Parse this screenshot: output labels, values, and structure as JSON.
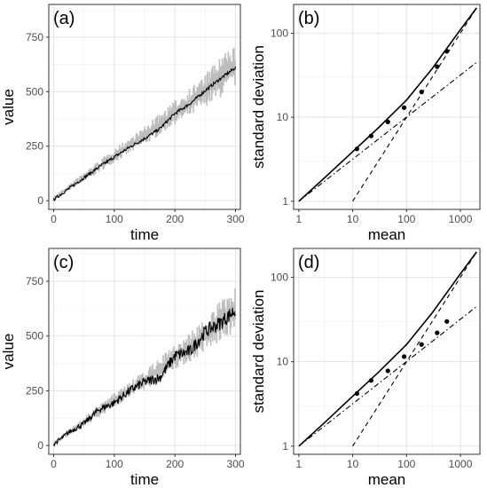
{
  "chart_data": [
    {
      "panel": "(a)",
      "type": "line",
      "xlabel": "time",
      "ylabel": "value",
      "xlim": [
        -8,
        308
      ],
      "ylim": [
        -40,
        900
      ],
      "xticks": [
        0,
        100,
        200,
        300
      ],
      "yticks": [
        0,
        250,
        500,
        750
      ],
      "grid": true,
      "series": [
        {
          "role": "band",
          "color": "#bdbdbd",
          "description_values": "min/max spread of simulated series",
          "x": [
            0,
            25,
            50,
            75,
            100,
            125,
            150,
            175,
            200,
            225,
            250,
            275,
            300
          ],
          "lower": [
            0,
            45,
            85,
            130,
            175,
            215,
            255,
            300,
            350,
            380,
            430,
            470,
            520
          ],
          "upper": [
            20,
            75,
            130,
            185,
            240,
            290,
            340,
            400,
            460,
            520,
            580,
            660,
            720
          ]
        },
        {
          "role": "line",
          "color": "#000000",
          "x": [
            0,
            25,
            50,
            75,
            100,
            125,
            150,
            175,
            200,
            225,
            250,
            275,
            300
          ],
          "y": [
            5,
            55,
            105,
            155,
            200,
            245,
            285,
            330,
            400,
            445,
            505,
            560,
            610
          ]
        }
      ]
    },
    {
      "panel": "(b)",
      "type": "scatter",
      "xlabel": "mean",
      "ylabel": "standard deviation",
      "xscale": "log",
      "yscale": "log",
      "xlim": [
        0.8,
        2300
      ],
      "ylim": [
        0.8,
        220
      ],
      "xticks": [
        1,
        10,
        100,
        1000
      ],
      "yticks": [
        1,
        10,
        100
      ],
      "grid": true,
      "points": {
        "x": [
          12,
          22,
          45,
          90,
          190,
          370,
          560
        ],
        "y": [
          4.2,
          6.0,
          8.8,
          13.0,
          20.0,
          40.0,
          61.0
        ]
      },
      "curves": [
        {
          "style": "solid",
          "x": [
            1,
            3,
            10,
            30,
            100,
            300,
            1000,
            2000
          ],
          "y": [
            1,
            1.9,
            3.9,
            7.5,
            16,
            38,
            110,
            200
          ]
        },
        {
          "style": "dashed",
          "x": [
            10,
            2000
          ],
          "y": [
            1,
            200
          ]
        },
        {
          "style": "dashdot",
          "x": [
            1,
            2000
          ],
          "y": [
            1,
            45
          ]
        }
      ]
    },
    {
      "panel": "(c)",
      "type": "line",
      "xlabel": "time",
      "ylabel": "value",
      "xlim": [
        -8,
        308
      ],
      "ylim": [
        -40,
        900
      ],
      "xticks": [
        0,
        100,
        200,
        300
      ],
      "yticks": [
        0,
        250,
        500,
        750
      ],
      "grid": true,
      "series": [
        {
          "role": "band",
          "color": "#bdbdbd",
          "x": [
            0,
            25,
            50,
            75,
            100,
            125,
            150,
            175,
            200,
            225,
            250,
            275,
            300
          ],
          "lower": [
            0,
            45,
            85,
            130,
            175,
            215,
            255,
            300,
            350,
            380,
            430,
            470,
            520
          ],
          "upper": [
            20,
            75,
            130,
            185,
            240,
            290,
            340,
            400,
            460,
            520,
            580,
            660,
            720
          ]
        },
        {
          "role": "line",
          "color": "#000000",
          "x": [
            0,
            25,
            50,
            75,
            100,
            125,
            150,
            175,
            200,
            225,
            250,
            275,
            300
          ],
          "y": [
            5,
            60,
            100,
            165,
            195,
            250,
            290,
            310,
            410,
            430,
            520,
            560,
            620
          ]
        }
      ]
    },
    {
      "panel": "(d)",
      "type": "scatter",
      "xlabel": "mean",
      "ylabel": "standard deviation",
      "xscale": "log",
      "yscale": "log",
      "xlim": [
        0.8,
        2300
      ],
      "ylim": [
        0.8,
        220
      ],
      "xticks": [
        1,
        10,
        100,
        1000
      ],
      "yticks": [
        1,
        10,
        100
      ],
      "grid": true,
      "points": {
        "x": [
          12,
          22,
          45,
          90,
          190,
          370,
          560
        ],
        "y": [
          4.2,
          6.0,
          7.8,
          11.5,
          16.0,
          22.0,
          30.0
        ]
      },
      "curves": [
        {
          "style": "solid",
          "x": [
            1,
            3,
            10,
            30,
            100,
            300,
            1000,
            2000
          ],
          "y": [
            1,
            1.9,
            3.9,
            7.5,
            16,
            38,
            110,
            200
          ]
        },
        {
          "style": "dashed",
          "x": [
            10,
            2000
          ],
          "y": [
            1,
            200
          ]
        },
        {
          "style": "dashdot",
          "x": [
            1,
            2000
          ],
          "y": [
            1,
            45
          ]
        }
      ]
    }
  ]
}
